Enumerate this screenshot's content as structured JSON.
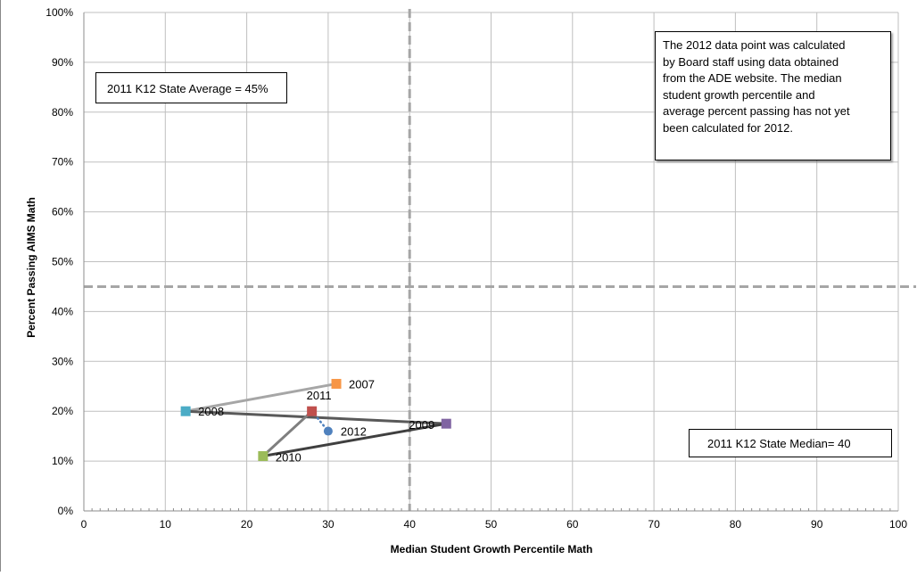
{
  "chart_data": {
    "type": "scatter",
    "xlabel": "Median Student Growth Percentile Math",
    "ylabel": "Percent Passing AIMS Math",
    "xlim": [
      0,
      100
    ],
    "ylim": [
      0,
      100
    ],
    "x_ticks": [
      "0",
      "10",
      "20",
      "30",
      "40",
      "50",
      "60",
      "70",
      "80",
      "90",
      "100"
    ],
    "y_ticks": [
      "0%",
      "10%",
      "20%",
      "30%",
      "40%",
      "50%",
      "60%",
      "70%",
      "80%",
      "90%",
      "100%"
    ],
    "grid": true,
    "points": [
      {
        "label": "2007",
        "x": 31.0,
        "y": 25.5,
        "color": "#f79646",
        "marker": "square"
      },
      {
        "label": "2008",
        "x": 12.5,
        "y": 20.0,
        "color": "#4bacc6",
        "marker": "square"
      },
      {
        "label": "2009",
        "x": 44.5,
        "y": 17.5,
        "color": "#8064a2",
        "marker": "square"
      },
      {
        "label": "2010",
        "x": 22.0,
        "y": 11.0,
        "color": "#9bbb59",
        "marker": "square"
      },
      {
        "label": "2011",
        "x": 28.0,
        "y": 20.0,
        "color": "#c0504d",
        "marker": "square"
      },
      {
        "label": "2012",
        "x": 30.0,
        "y": 16.0,
        "color": "#4f81bd",
        "marker": "circle"
      }
    ],
    "connectors": [
      {
        "from": "2007",
        "to": "2008",
        "color": "#a6a6a6",
        "style": "solid"
      },
      {
        "from": "2008",
        "to": "2009",
        "color": "#595959",
        "style": "solid"
      },
      {
        "from": "2009",
        "to": "2010",
        "color": "#3f3f3f",
        "style": "solid"
      },
      {
        "from": "2010",
        "to": "2011",
        "color": "#7f7f7f",
        "style": "solid"
      },
      {
        "from": "2011",
        "to": "2012",
        "color": "#4f81bd",
        "style": "dotted"
      }
    ],
    "reference_lines": [
      {
        "orientation": "vertical",
        "value": 40,
        "color": "#a6a6a6",
        "style": "dashed"
      },
      {
        "orientation": "horizontal",
        "value": 45,
        "color": "#a6a6a6",
        "style": "dashed"
      }
    ],
    "annotations": {
      "state_average": "2011 K12 State Average = 45%",
      "state_median": "2011 K12 State Median= 40",
      "note_lines": [
        "The 2012 data point was calculated",
        "by Board staff using data obtained",
        "from the ADE website.  The median",
        "student growth percentile and",
        "average percent passing has not yet",
        "been calculated for 2012."
      ]
    }
  }
}
